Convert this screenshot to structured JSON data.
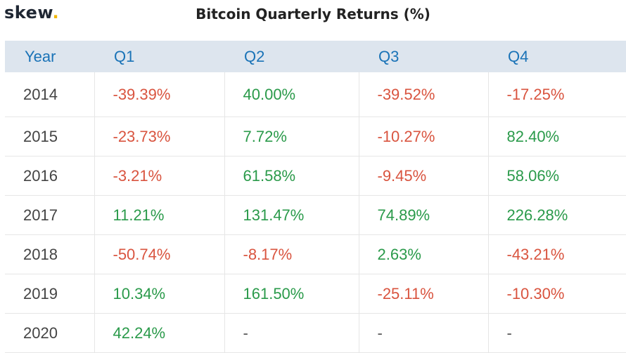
{
  "brand": {
    "name": "skew",
    "dot": "."
  },
  "chart_data": {
    "type": "table",
    "title": "Bitcoin Quarterly Returns (%)",
    "columns": [
      "Year",
      "Q1",
      "Q2",
      "Q3",
      "Q4"
    ],
    "rows": [
      [
        "2014",
        "-39.39%",
        "40.00%",
        "-39.52%",
        "-17.25%"
      ],
      [
        "2015",
        "-23.73%",
        "7.72%",
        "-10.27%",
        "82.40%"
      ],
      [
        "2016",
        "-3.21%",
        "61.58%",
        "-9.45%",
        "58.06%"
      ],
      [
        "2017",
        "11.21%",
        "131.47%",
        "74.89%",
        "226.28%"
      ],
      [
        "2018",
        "-50.74%",
        "-8.17%",
        "2.63%",
        "-43.21%"
      ],
      [
        "2019",
        "10.34%",
        "161.50%",
        "-25.11%",
        "-10.30%"
      ],
      [
        "2020",
        "42.24%",
        "-",
        "-",
        "-"
      ]
    ],
    "colors": {
      "positive": "#2a9a4a",
      "negative": "#d9543f",
      "header_bg": "#dde5ee",
      "header_text": "#1a73b7"
    }
  }
}
